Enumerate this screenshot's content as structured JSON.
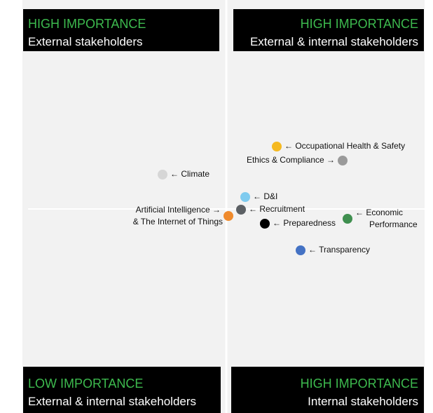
{
  "quadrants": [
    {
      "heading": "HIGH IMPORTANCE",
      "subheading": "External stakeholders"
    },
    {
      "heading": "HIGH IMPORTANCE",
      "subheading": "External & internal stakeholders"
    },
    {
      "heading": "LOW IMPORTANCE",
      "subheading": "External & internal stakeholders"
    },
    {
      "heading": "HIGH IMPORTANCE",
      "subheading": "Internal stakeholders"
    }
  ],
  "items": [
    {
      "lines": [
        "← Occupational Health & Safety"
      ],
      "color": "#f5b921"
    },
    {
      "lines": [
        "Ethics & Compliance →"
      ],
      "color": "#9a9a9a"
    },
    {
      "lines": [
        "← Climate"
      ],
      "color": "#d6d6d6"
    },
    {
      "lines": [
        "← D&I"
      ],
      "color": "#7fcbef"
    },
    {
      "lines": [
        "← Recruitment"
      ],
      "color": "#5c6064"
    },
    {
      "lines": [
        "Artificial Intelligence →",
        "& The Internet of Things"
      ],
      "color": "#ef8a2c"
    },
    {
      "lines": [
        "← Preparedness"
      ],
      "color": "#000000"
    },
    {
      "lines": [
        "← Economic",
        "Performance"
      ],
      "color": "#3f8f4f"
    },
    {
      "lines": [
        "← Transparency"
      ],
      "color": "#4472c4"
    }
  ]
}
